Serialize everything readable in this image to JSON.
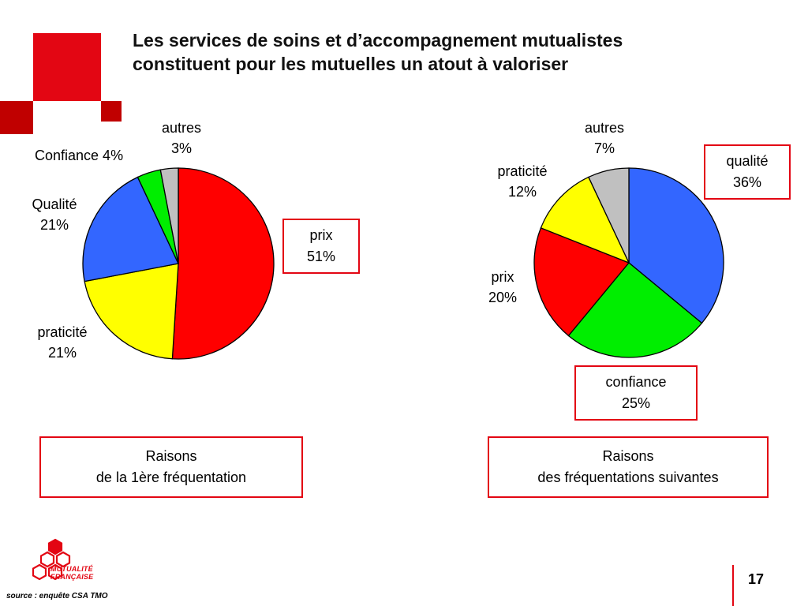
{
  "title_line1": "Les services de soins et d’accompagnement mutualistes",
  "title_line2": "constituent pour les mutuelles un atout à valoriser",
  "chart_data": [
    {
      "type": "pie",
      "title": "Raisons de la 1ère fréquentation",
      "categories": [
        "prix",
        "praticité",
        "Qualité",
        "Confiance",
        "autres"
      ],
      "values": [
        51,
        21,
        21,
        4,
        3
      ],
      "colors": [
        "#ff0000",
        "#ffff00",
        "#3366ff",
        "#00ee00",
        "#c0c0c0"
      ],
      "labels": {
        "prix": {
          "name": "prix",
          "pct": "51%"
        },
        "praticite": {
          "name": "praticité",
          "pct": "21%"
        },
        "qualite": {
          "name": "Qualité",
          "pct": "21%"
        },
        "confiance": "Confiance 4%",
        "autres": {
          "name": "autres",
          "pct": "3%"
        }
      },
      "caption_line1": "Raisons",
      "caption_line2": "de la 1ère fréquentation"
    },
    {
      "type": "pie",
      "title": "Raisons des fréquentations suivantes",
      "categories": [
        "qualité",
        "confiance",
        "prix",
        "praticité",
        "autres"
      ],
      "values": [
        36,
        25,
        20,
        12,
        7
      ],
      "colors": [
        "#3366ff",
        "#00ee00",
        "#ff0000",
        "#ffff00",
        "#c0c0c0"
      ],
      "labels": {
        "qualite": {
          "name": "qualité",
          "pct": "36%"
        },
        "confiance": {
          "name": "confiance",
          "pct": "25%"
        },
        "prix": {
          "name": "prix",
          "pct": "20%"
        },
        "praticite": {
          "name": "praticité",
          "pct": "12%"
        },
        "autres": {
          "name": "autres",
          "pct": "7%"
        }
      },
      "caption_line1": "Raisons",
      "caption_line2": "des fréquentations suivantes"
    }
  ],
  "logo_line1": "MUTUALITÉ",
  "logo_line2": "FRANÇAISE",
  "source": "source : enquête CSA TMO",
  "page_number": "17",
  "colors": {
    "accent": "#e30613",
    "dark_red": "#c00000"
  }
}
